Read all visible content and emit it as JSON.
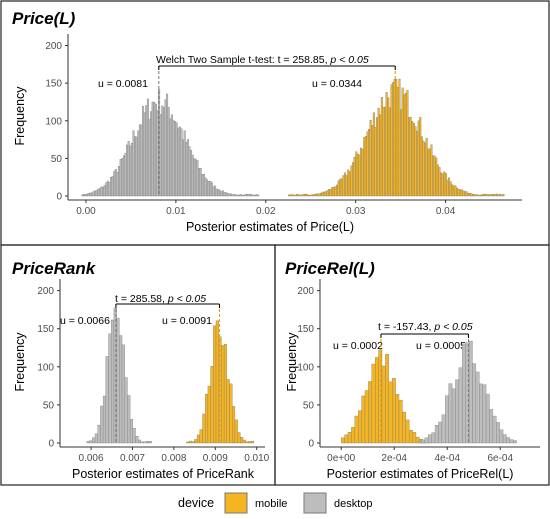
{
  "legend": {
    "title": "device",
    "items": [
      {
        "label": "mobile",
        "color": "#F5B523"
      },
      {
        "label": "desktop",
        "color": "#BDBDBD"
      }
    ]
  },
  "colors": {
    "mobile": "#F5B523",
    "desktop": "#BDBDBD",
    "bar_outline": "#7a7a7a"
  },
  "chart_data": [
    {
      "type": "bar",
      "title": "Price(L)",
      "xlabel": "Posterior estimates of Price(L)",
      "ylabel": "Frequency",
      "xlim": [
        -0.002,
        0.0485
      ],
      "ylim": [
        0,
        210
      ],
      "xticks": [
        0.0,
        0.01,
        0.02,
        0.03,
        0.04
      ],
      "xtick_labels": [
        "0.00",
        "0.01",
        "0.02",
        "0.03",
        "0.04"
      ],
      "yticks": [
        0,
        50,
        100,
        150,
        200
      ],
      "series": [
        {
          "name": "desktop",
          "mean": 0.0081,
          "sd": 0.0029,
          "peak": 130,
          "lo": -0.0005,
          "hi": 0.0192
        },
        {
          "name": "mobile",
          "mean": 0.0344,
          "sd": 0.0031,
          "peak": 142,
          "lo": 0.0225,
          "hi": 0.0465
        }
      ],
      "mean_labels": [
        "u = 0.0081",
        "u = 0.0344"
      ],
      "test_text": "Welch Two Sample t-test:  t = 258.85, ",
      "p_text": "p < 0.05"
    },
    {
      "type": "bar",
      "title": "PriceRank",
      "xlabel": "Posterior estimates of PriceRank",
      "ylabel": "Frequency",
      "xlim": [
        0.00525,
        0.0102
      ],
      "ylim": [
        0,
        210
      ],
      "xticks": [
        0.006,
        0.007,
        0.008,
        0.009,
        0.01
      ],
      "xtick_labels": [
        "0.006",
        "0.007",
        "0.008",
        "0.009",
        "0.010"
      ],
      "yticks": [
        0,
        50,
        100,
        150,
        200
      ],
      "series": [
        {
          "name": "desktop",
          "mean": 0.0066,
          "sd": 0.00021,
          "peak": 172,
          "lo": 0.0059,
          "hi": 0.0074
        },
        {
          "name": "mobile",
          "mean": 0.0091,
          "sd": 0.00022,
          "peak": 160,
          "lo": 0.0083,
          "hi": 0.0099
        }
      ],
      "mean_labels": [
        "u = 0.0066",
        "u = 0.0091"
      ],
      "test_text": "t = 285.58,  ",
      "p_text": "p < 0.05"
    },
    {
      "type": "bar",
      "title": "PriceRel(L)",
      "xlabel": "Posterior estimates of PriceRel(L)",
      "ylabel": "Frequency",
      "xlim": [
        -8e-05,
        0.00075
      ],
      "ylim": [
        0,
        210
      ],
      "xticks": [
        0.0,
        0.0002,
        0.0004,
        0.0006
      ],
      "xtick_labels": [
        "0e+00",
        "2e-04",
        "4e-04",
        "6e-04"
      ],
      "yticks": [
        0,
        50,
        100,
        150,
        200
      ],
      "series": [
        {
          "name": "mobile",
          "mean": 0.00015,
          "sd": 6e-05,
          "peak": 115,
          "lo": 0.0,
          "hi": 0.00033
        },
        {
          "name": "desktop",
          "mean": 0.00048,
          "sd": 6.5e-05,
          "peak": 122,
          "lo": 0.00029,
          "hi": 0.00066
        }
      ],
      "mean_labels": [
        "u = 0.0002",
        "u = 0.0005"
      ],
      "test_text": "t = -157.43,  ",
      "p_text": "p < 0.05"
    }
  ]
}
